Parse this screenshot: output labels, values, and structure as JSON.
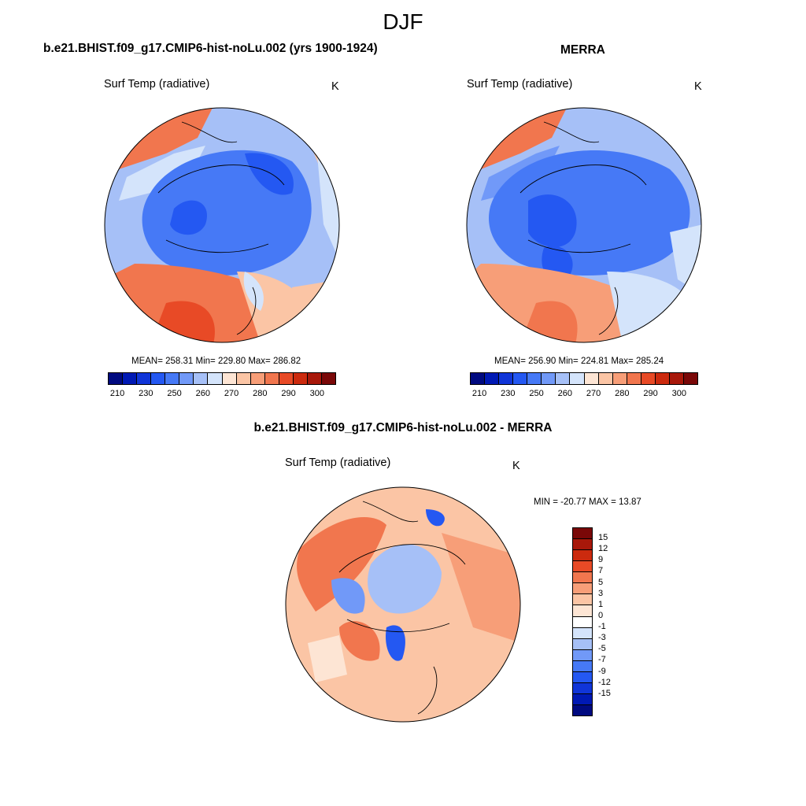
{
  "figure": {
    "title": "DJF",
    "left_panel_title": "b.e21.BHIST.f09_g17.CMIP6-hist-noLu.002 (yrs 1900-1924)",
    "right_panel_title": "MERRA",
    "diff_panel_title": "b.e21.BHIST.f09_g17.CMIP6-hist-noLu.002 - MERRA"
  },
  "panels": {
    "left": {
      "variable": "Surf Temp (radiative)",
      "unit": "K",
      "stats": "MEAN= 258.31  Min= 229.80  Max= 286.82"
    },
    "right": {
      "variable": "Surf Temp (radiative)",
      "unit": "K",
      "stats": "MEAN= 256.90  Min= 224.81  Max= 285.24"
    },
    "diff": {
      "variable": "Surf Temp (radiative)",
      "unit": "K",
      "stats": "MIN = -20.77 MAX =  13.87"
    }
  },
  "colorbars": {
    "abs": {
      "colors": [
        "#000a80",
        "#0019b4",
        "#1035d8",
        "#2458f2",
        "#4679f6",
        "#7199f8",
        "#a6c0f7",
        "#d4e4fb",
        "#fde5d4",
        "#fbc5a5",
        "#f79e78",
        "#f1764e",
        "#e84a26",
        "#cc2a0e",
        "#a8180a",
        "#7a0808"
      ],
      "tick_labels": [
        "210",
        "230",
        "250",
        "260",
        "270",
        "280",
        "290",
        "300"
      ]
    },
    "diff": {
      "colors": [
        "#7a0808",
        "#a8180a",
        "#cc2a0e",
        "#e84a26",
        "#f1764e",
        "#f79e78",
        "#fbc5a5",
        "#fde5d4",
        "#ffffff",
        "#d4e4fb",
        "#a6c0f7",
        "#7199f8",
        "#4679f6",
        "#2458f2",
        "#1035d8",
        "#0019b4",
        "#000a80"
      ],
      "tick_labels": [
        "15",
        "12",
        "9",
        "7",
        "5",
        "3",
        "1",
        "0",
        "-1",
        "-3",
        "-5",
        "-7",
        "-9",
        "-12",
        "-15"
      ]
    }
  }
}
